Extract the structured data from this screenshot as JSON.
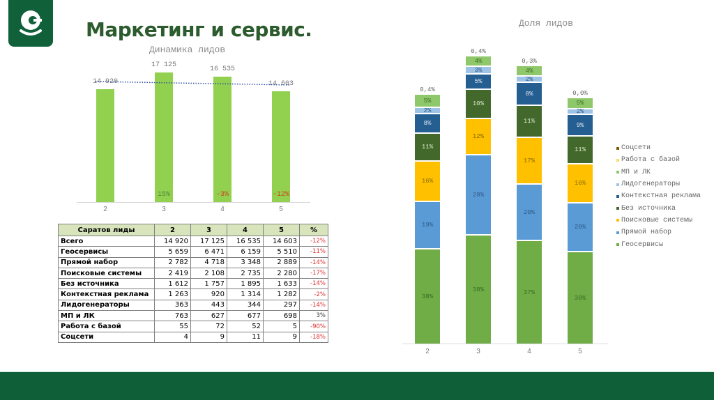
{
  "header": {
    "logo_alt": "Сбер-style C logo",
    "title": "Маркетинг и сервис."
  },
  "colors": {
    "brand_green": "#10603a",
    "title_green": "#2c5b2e",
    "bar_green": "#92d050",
    "negative_red": "#e03030",
    "positive_green": "#4f8a3a"
  },
  "chart_data": [
    {
      "type": "bar",
      "title": "Динамика лидов",
      "categories": [
        "2",
        "3",
        "4",
        "5"
      ],
      "values": [
        14920,
        17125,
        16535,
        14603
      ],
      "value_labels": [
        "14 920",
        "17 125",
        "16 535",
        "14 603"
      ],
      "change_labels": [
        "",
        "15%",
        "-3%",
        "-12%"
      ],
      "trendline": "dotted linear, dark blue",
      "ylim": [
        0,
        18000
      ],
      "grid": false,
      "xlabel": "",
      "ylabel": ""
    },
    {
      "type": "bar",
      "stacked": true,
      "percent": true,
      "title": "Доля лидов",
      "categories": [
        "2",
        "3",
        "4",
        "5"
      ],
      "legend_position": "right",
      "series": [
        {
          "name": "Геосервисы",
          "color": "#70ad47",
          "values": [
            38,
            38,
            37,
            38
          ]
        },
        {
          "name": "Прямой набор",
          "color": "#5b9bd5",
          "values": [
            19,
            28,
            20,
            20
          ]
        },
        {
          "name": "Поисковые системы",
          "color": "#ffc000",
          "values": [
            16,
            12,
            17,
            16
          ]
        },
        {
          "name": "Без источника",
          "color": "#43682b",
          "values": [
            11,
            10,
            11,
            11
          ]
        },
        {
          "name": "Контекстная реклама",
          "color": "#255e91",
          "values": [
            8,
            5,
            8,
            9
          ]
        },
        {
          "name": "Лидогенераторы",
          "color": "#9dc3e6",
          "values": [
            2,
            3,
            2,
            2
          ]
        },
        {
          "name": "МП и ЛК",
          "color": "#8fc86a",
          "values": [
            5,
            4,
            4,
            5
          ]
        },
        {
          "name": "Работа с базой",
          "color": "#ffd966",
          "values": [
            0.4,
            0.4,
            0.3,
            0.0
          ]
        },
        {
          "name": "Соцсети",
          "color": "#7f6000",
          "values": [
            0,
            0,
            0,
            0
          ]
        }
      ],
      "top_labels": [
        "0,4%",
        "0,4%",
        "0,3%",
        "0,0%"
      ]
    }
  ],
  "left_chart": {
    "title": "Динамика лидов",
    "bars": [
      {
        "x": "2",
        "label": "14 920",
        "change": "",
        "change_color": "#4f8a3a"
      },
      {
        "x": "3",
        "label": "17 125",
        "change": "15%",
        "change_color": "#4f8a3a"
      },
      {
        "x": "4",
        "label": "16 535",
        "change": "-3%",
        "change_color": "#d0421b"
      },
      {
        "x": "5",
        "label": "14 603",
        "change": "-12%",
        "change_color": "#d0421b"
      }
    ]
  },
  "table": {
    "headers": [
      "Саратов лиды",
      "2",
      "3",
      "4",
      "5",
      "%"
    ],
    "rows": [
      {
        "name": "Всего",
        "v": [
          "14 920",
          "17 125",
          "16 535",
          "14 603"
        ],
        "pct": "-12%"
      },
      {
        "name": "Геосервисы",
        "v": [
          "5 659",
          "6 471",
          "6 159",
          "5 510"
        ],
        "pct": "-11%"
      },
      {
        "name": "Прямой набор",
        "v": [
          "2 782",
          "4 718",
          "3 348",
          "2 889"
        ],
        "pct": "-14%"
      },
      {
        "name": "Поисковые системы",
        "v": [
          "2 419",
          "2 108",
          "2 735",
          "2 280"
        ],
        "pct": "-17%"
      },
      {
        "name": "Без источника",
        "v": [
          "1 612",
          "1 757",
          "1 895",
          "1 633"
        ],
        "pct": "-14%"
      },
      {
        "name": "Контекстная реклама",
        "v": [
          "1 263",
          "920",
          "1 314",
          "1 282"
        ],
        "pct": "-2%"
      },
      {
        "name": "Лидогенераторы",
        "v": [
          "363",
          "443",
          "344",
          "297"
        ],
        "pct": "-14%"
      },
      {
        "name": "МП и ЛК",
        "v": [
          "763",
          "627",
          "677",
          "698"
        ],
        "pct": "3%"
      },
      {
        "name": "Работа с базой",
        "v": [
          "55",
          "72",
          "52",
          "5"
        ],
        "pct": "-90%"
      },
      {
        "name": "Соцсети",
        "v": [
          "4",
          "9",
          "11",
          "9"
        ],
        "pct": "-18%"
      }
    ]
  },
  "right_chart": {
    "title": "Доля лидов",
    "legend": [
      {
        "label": "Соцсети",
        "color": "#7f6000"
      },
      {
        "label": "Работа с базой",
        "color": "#ffd966"
      },
      {
        "label": "МП и ЛК",
        "color": "#8fc86a"
      },
      {
        "label": "Лидогенераторы",
        "color": "#9dc3e6"
      },
      {
        "label": "Контекстная реклама",
        "color": "#255e91"
      },
      {
        "label": "Без источника",
        "color": "#43682b"
      },
      {
        "label": "Поисковые системы",
        "color": "#ffc000"
      },
      {
        "label": "Прямой набор",
        "color": "#5b9bd5"
      },
      {
        "label": "Геосервисы",
        "color": "#70ad47"
      }
    ]
  }
}
